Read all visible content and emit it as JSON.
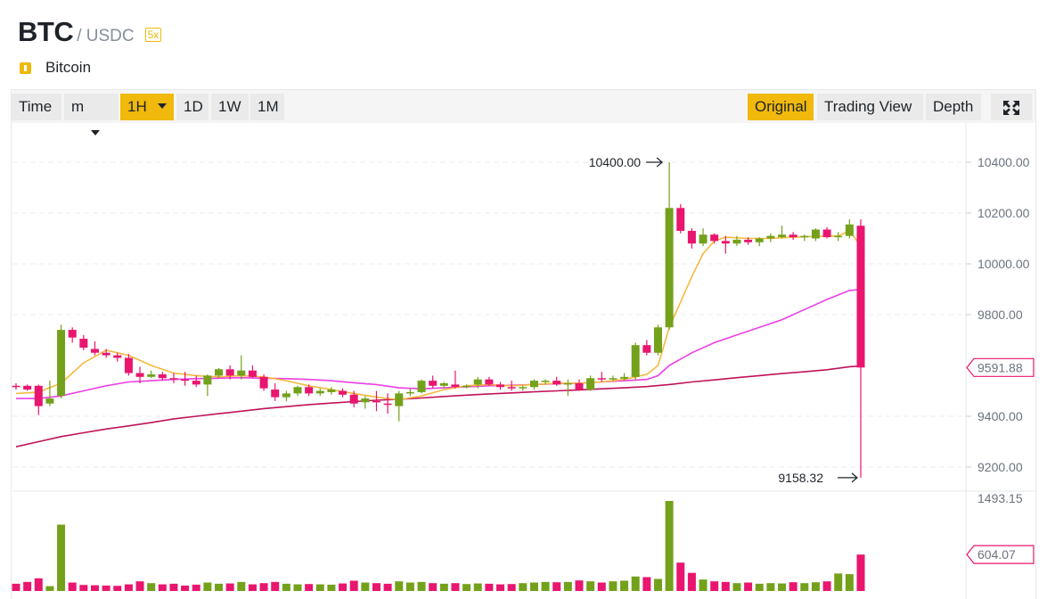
{
  "header": {
    "base": "BTC",
    "quote": "/ USDC",
    "leverage": "5x"
  },
  "coin": {
    "name": "Bitcoin",
    "icon": "info-icon"
  },
  "toolbar": {
    "time_label": "Time",
    "minute_select": "m",
    "hour_select": "1H",
    "intervals": [
      "1D",
      "1W",
      "1M"
    ],
    "views": [
      "Original",
      "Trading View",
      "Depth"
    ],
    "active_view": "Original",
    "fullscreen_icon": "fullscreen-icon"
  },
  "colors": {
    "up": "#73a11b",
    "down": "#e8166e",
    "ma_short": "#f5b93e",
    "ma_mid": "#ec3fe6",
    "ma_long": "#c0125a",
    "accent": "#f0b90b"
  },
  "chart_data": {
    "type": "candlestick",
    "interval": "1H",
    "y_ticks": [
      "10400.00",
      "10200.00",
      "10000.00",
      "9800.00",
      "9400.00",
      "9200.00"
    ],
    "price_tick_values": [
      10400,
      10200,
      10000,
      9800,
      9400,
      9200
    ],
    "last_price": "9591.88",
    "last_price_value": 9591.88,
    "high_annotation": "10400.00",
    "high_value": 10400,
    "low_annotation": "9158.32",
    "low_value": 9158.32,
    "volume_max_label": "1493.15",
    "volume_max_value": 1493.15,
    "last_volume_label": "604.07",
    "last_volume_value": 604.07,
    "candles": [
      [
        9520,
        9530,
        9505,
        9515
      ],
      [
        9520,
        9525,
        9500,
        9505
      ],
      [
        9520,
        9525,
        9405,
        9440
      ],
      [
        9450,
        9540,
        9440,
        9470
      ],
      [
        9480,
        9760,
        9470,
        9740
      ],
      [
        9740,
        9750,
        9690,
        9710
      ],
      [
        9705,
        9720,
        9660,
        9670
      ],
      [
        9665,
        9695,
        9640,
        9650
      ],
      [
        9650,
        9665,
        9630,
        9640
      ],
      [
        9640,
        9650,
        9615,
        9630
      ],
      [
        9630,
        9645,
        9560,
        9570
      ],
      [
        9570,
        9595,
        9530,
        9555
      ],
      [
        9555,
        9580,
        9550,
        9565
      ],
      [
        9565,
        9575,
        9540,
        9550
      ],
      [
        9550,
        9570,
        9530,
        9545
      ],
      [
        9545,
        9575,
        9520,
        9540
      ],
      [
        9540,
        9560,
        9515,
        9525
      ],
      [
        9525,
        9565,
        9480,
        9560
      ],
      [
        9560,
        9590,
        9550,
        9585
      ],
      [
        9585,
        9600,
        9545,
        9560
      ],
      [
        9560,
        9640,
        9545,
        9580
      ],
      [
        9580,
        9600,
        9550,
        9555
      ],
      [
        9555,
        9565,
        9500,
        9510
      ],
      [
        9505,
        9530,
        9460,
        9475
      ],
      [
        9475,
        9500,
        9460,
        9490
      ],
      [
        9490,
        9520,
        9480,
        9515
      ],
      [
        9515,
        9525,
        9480,
        9490
      ],
      [
        9490,
        9510,
        9480,
        9500
      ],
      [
        9495,
        9515,
        9485,
        9505
      ],
      [
        9500,
        9510,
        9475,
        9485
      ],
      [
        9485,
        9500,
        9435,
        9450
      ],
      [
        9455,
        9480,
        9430,
        9470
      ],
      [
        9460,
        9500,
        9420,
        9455
      ],
      [
        9450,
        9490,
        9410,
        9445
      ],
      [
        9440,
        9500,
        9380,
        9490
      ],
      [
        9490,
        9510,
        9480,
        9495
      ],
      [
        9495,
        9545,
        9490,
        9540
      ],
      [
        9540,
        9560,
        9510,
        9520
      ],
      [
        9520,
        9535,
        9510,
        9530
      ],
      [
        9525,
        9580,
        9510,
        9515
      ],
      [
        9515,
        9525,
        9510,
        9520
      ],
      [
        9525,
        9555,
        9510,
        9545
      ],
      [
        9545,
        9555,
        9520,
        9525
      ],
      [
        9525,
        9535,
        9505,
        9515
      ],
      [
        9515,
        9540,
        9500,
        9510
      ],
      [
        9510,
        9520,
        9500,
        9515
      ],
      [
        9515,
        9545,
        9505,
        9540
      ],
      [
        9535,
        9545,
        9525,
        9540
      ],
      [
        9540,
        9555,
        9520,
        9525
      ],
      [
        9525,
        9545,
        9480,
        9530
      ],
      [
        9530,
        9545,
        9500,
        9505
      ],
      [
        9505,
        9560,
        9500,
        9550
      ],
      [
        9550,
        9575,
        9535,
        9545
      ],
      [
        9545,
        9560,
        9540,
        9550
      ],
      [
        9548,
        9570,
        9540,
        9555
      ],
      [
        9555,
        9690,
        9540,
        9680
      ],
      [
        9680,
        9700,
        9640,
        9650
      ],
      [
        9650,
        9760,
        9640,
        9750
      ],
      [
        9750,
        10400,
        9740,
        10220
      ],
      [
        10220,
        10235,
        10120,
        10130
      ],
      [
        10130,
        10140,
        10060,
        10080
      ],
      [
        10080,
        10140,
        10070,
        10115
      ],
      [
        10115,
        10120,
        10080,
        10090
      ],
      [
        10090,
        10110,
        10040,
        10080
      ],
      [
        10080,
        10110,
        10070,
        10095
      ],
      [
        10095,
        10105,
        10075,
        10085
      ],
      [
        10085,
        10105,
        10070,
        10100
      ],
      [
        10100,
        10120,
        10085,
        10110
      ],
      [
        10105,
        10150,
        10100,
        10115
      ],
      [
        10115,
        10125,
        10095,
        10105
      ],
      [
        10105,
        10115,
        10090,
        10110
      ],
      [
        10100,
        10140,
        10090,
        10135
      ],
      [
        10135,
        10145,
        10100,
        10105
      ],
      [
        10105,
        10125,
        10090,
        10110
      ],
      [
        10110,
        10175,
        10100,
        10155
      ],
      [
        10150,
        10175,
        9158.32,
        9591.88
      ]
    ],
    "volumes": [
      120,
      150,
      210,
      80,
      1100,
      140,
      100,
      95,
      90,
      85,
      110,
      160,
      130,
      110,
      120,
      90,
      105,
      140,
      120,
      125,
      150,
      110,
      130,
      150,
      120,
      110,
      115,
      110,
      105,
      125,
      170,
      140,
      130,
      120,
      160,
      140,
      150,
      130,
      120,
      130,
      115,
      125,
      120,
      110,
      115,
      130,
      140,
      150,
      145,
      150,
      175,
      160,
      140,
      160,
      170,
      240,
      230,
      200,
      1493.15,
      470,
      300,
      190,
      160,
      150,
      130,
      140,
      120,
      130,
      125,
      145,
      130,
      145,
      160,
      290,
      280,
      604.07
    ],
    "ma_short": [
      [
        0,
        9490
      ],
      [
        2,
        9495
      ],
      [
        4,
        9530
      ],
      [
        6,
        9610
      ],
      [
        8,
        9660
      ],
      [
        10,
        9640
      ],
      [
        12,
        9600
      ],
      [
        14,
        9570
      ],
      [
        16,
        9560
      ],
      [
        18,
        9555
      ],
      [
        20,
        9560
      ],
      [
        22,
        9555
      ],
      [
        24,
        9540
      ],
      [
        26,
        9520
      ],
      [
        28,
        9505
      ],
      [
        30,
        9490
      ],
      [
        32,
        9475
      ],
      [
        34,
        9465
      ],
      [
        36,
        9480
      ],
      [
        38,
        9505
      ],
      [
        40,
        9520
      ],
      [
        42,
        9525
      ],
      [
        44,
        9520
      ],
      [
        46,
        9525
      ],
      [
        48,
        9530
      ],
      [
        50,
        9530
      ],
      [
        52,
        9535
      ],
      [
        54,
        9545
      ],
      [
        56,
        9565
      ],
      [
        57,
        9600
      ],
      [
        58,
        9750
      ],
      [
        59,
        9850
      ],
      [
        60,
        9950
      ],
      [
        61,
        10040
      ],
      [
        62,
        10090
      ],
      [
        63,
        10105
      ],
      [
        65,
        10100
      ],
      [
        67,
        10100
      ],
      [
        69,
        10105
      ],
      [
        71,
        10108
      ],
      [
        73,
        10110
      ],
      [
        74,
        10130
      ],
      [
        75,
        10070
      ]
    ],
    "ma_mid": [
      [
        0,
        9470
      ],
      [
        2,
        9470
      ],
      [
        4,
        9480
      ],
      [
        6,
        9500
      ],
      [
        8,
        9520
      ],
      [
        10,
        9535
      ],
      [
        12,
        9540
      ],
      [
        14,
        9545
      ],
      [
        16,
        9548
      ],
      [
        18,
        9550
      ],
      [
        20,
        9552
      ],
      [
        22,
        9550
      ],
      [
        24,
        9548
      ],
      [
        26,
        9545
      ],
      [
        28,
        9540
      ],
      [
        30,
        9532
      ],
      [
        32,
        9525
      ],
      [
        34,
        9512
      ],
      [
        36,
        9508
      ],
      [
        38,
        9512
      ],
      [
        40,
        9516
      ],
      [
        42,
        9520
      ],
      [
        44,
        9522
      ],
      [
        46,
        9525
      ],
      [
        48,
        9528
      ],
      [
        50,
        9530
      ],
      [
        52,
        9535
      ],
      [
        54,
        9540
      ],
      [
        56,
        9545
      ],
      [
        57,
        9560
      ],
      [
        58,
        9600
      ],
      [
        60,
        9650
      ],
      [
        62,
        9690
      ],
      [
        64,
        9720
      ],
      [
        66,
        9750
      ],
      [
        68,
        9780
      ],
      [
        70,
        9820
      ],
      [
        72,
        9860
      ],
      [
        74,
        9895
      ],
      [
        75,
        9900
      ]
    ],
    "ma_long": [
      [
        0,
        9280
      ],
      [
        2,
        9300
      ],
      [
        4,
        9320
      ],
      [
        6,
        9335
      ],
      [
        8,
        9350
      ],
      [
        10,
        9362
      ],
      [
        12,
        9375
      ],
      [
        14,
        9390
      ],
      [
        16,
        9400
      ],
      [
        18,
        9410
      ],
      [
        20,
        9420
      ],
      [
        22,
        9430
      ],
      [
        24,
        9438
      ],
      [
        26,
        9446
      ],
      [
        28,
        9452
      ],
      [
        30,
        9458
      ],
      [
        32,
        9463
      ],
      [
        34,
        9467
      ],
      [
        36,
        9472
      ],
      [
        38,
        9478
      ],
      [
        40,
        9483
      ],
      [
        42,
        9488
      ],
      [
        44,
        9492
      ],
      [
        46,
        9496
      ],
      [
        48,
        9500
      ],
      [
        50,
        9504
      ],
      [
        52,
        9508
      ],
      [
        54,
        9512
      ],
      [
        56,
        9517
      ],
      [
        58,
        9525
      ],
      [
        60,
        9535
      ],
      [
        62,
        9543
      ],
      [
        64,
        9552
      ],
      [
        66,
        9560
      ],
      [
        68,
        9568
      ],
      [
        70,
        9575
      ],
      [
        72,
        9583
      ],
      [
        74,
        9595
      ],
      [
        75,
        9598
      ]
    ]
  }
}
